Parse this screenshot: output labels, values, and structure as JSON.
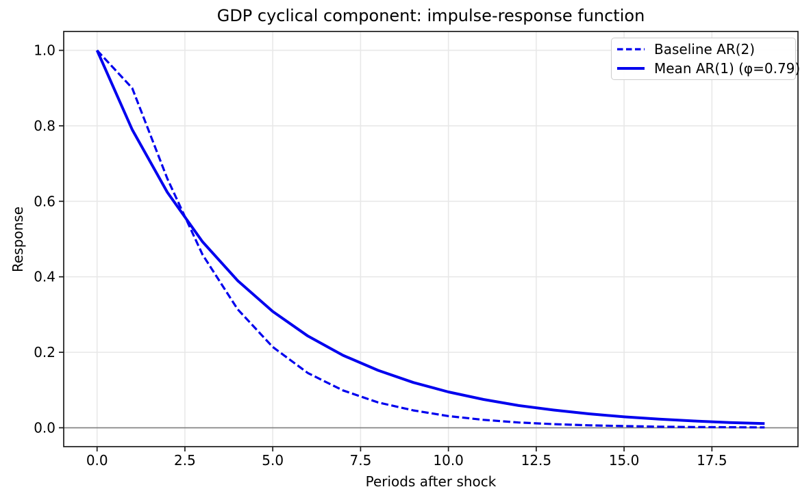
{
  "figure": {
    "title": "GDP cyclical component: impulse-response function",
    "xlabel": "Periods after shock",
    "ylabel": "Response"
  },
  "legend": {
    "position": "upper right",
    "entries": [
      {
        "label": "Baseline AR(2)",
        "style": "dashed"
      },
      {
        "label": "Mean AR(1) (φ=0.79)",
        "style": "solid"
      }
    ]
  },
  "colors": {
    "line": "#0000ee",
    "grid": "#e8e8e8",
    "spine": "#1a1a1a",
    "tick": "#1a1a1a",
    "zero_line": "#808080",
    "legend_border": "#cccccc",
    "text": "#000000",
    "background": "#ffffff"
  },
  "chart_data": {
    "type": "line",
    "title": "GDP cyclical component: impulse-response function",
    "xlabel": "Periods after shock",
    "ylabel": "Response",
    "grid": true,
    "zero_line_y": 0,
    "legend_position": "upper right",
    "xlim": [
      -0.95,
      19.95
    ],
    "ylim": [
      -0.05,
      1.05
    ],
    "xticks": {
      "values": [
        0,
        2.5,
        5,
        7.5,
        10,
        12.5,
        15,
        17.5
      ],
      "labels": [
        "0.0",
        "2.5",
        "5.0",
        "7.5",
        "10.0",
        "12.5",
        "15.0",
        "17.5"
      ]
    },
    "yticks": {
      "values": [
        0,
        0.2,
        0.4,
        0.6,
        0.8,
        1.0
      ],
      "labels": [
        "0.0",
        "0.2",
        "0.4",
        "0.6",
        "0.8",
        "1.0"
      ]
    },
    "x": [
      0,
      1,
      2,
      3,
      4,
      5,
      6,
      7,
      8,
      9,
      10,
      11,
      12,
      13,
      14,
      15,
      16,
      17,
      18,
      19
    ],
    "series": [
      {
        "name": "Baseline AR(2)",
        "style": "dashed",
        "color": "#0000ee",
        "width": 3.2,
        "values": [
          1.0,
          0.9,
          0.66,
          0.459,
          0.314,
          0.214,
          0.145,
          0.099,
          0.067,
          0.046,
          0.031,
          0.021,
          0.014,
          0.0097,
          0.0066,
          0.0045,
          0.003,
          0.0021,
          0.0014,
          0.0009
        ]
      },
      {
        "name": "Mean AR(1) (φ=0.79)",
        "style": "solid",
        "color": "#0000ee",
        "width": 4,
        "values": [
          1.0,
          0.79,
          0.624,
          0.493,
          0.39,
          0.308,
          0.243,
          0.192,
          0.152,
          0.12,
          0.095,
          0.075,
          0.059,
          0.047,
          0.037,
          0.029,
          0.023,
          0.018,
          0.014,
          0.011
        ]
      }
    ]
  }
}
